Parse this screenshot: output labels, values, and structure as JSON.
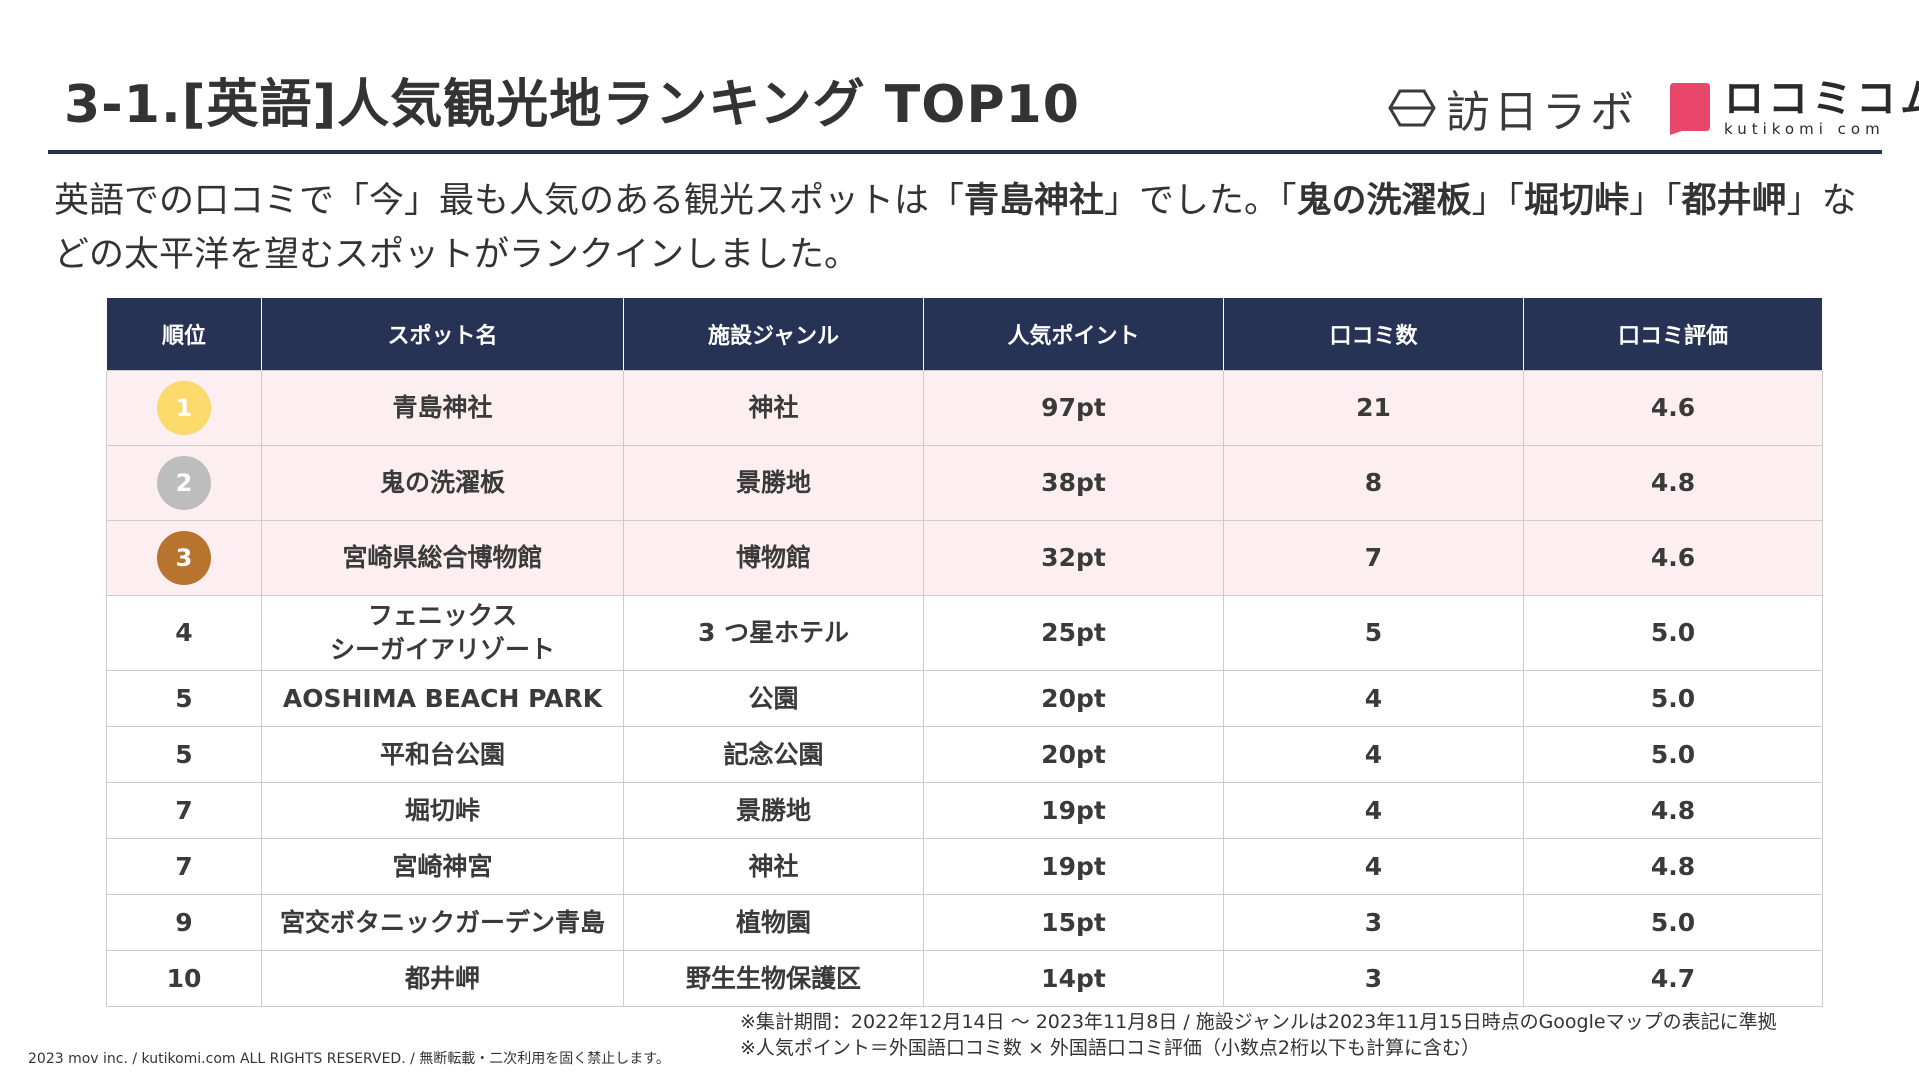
{
  "title": "3-1.[英語]人気観光地ランキング TOP10",
  "logos": {
    "houni_lab": "訪日ラボ",
    "kutikomi_main": "ロコミコム",
    "kutikomi_sub": "kutikomi com",
    "kutikomi_color": "#e8466b"
  },
  "lead": {
    "p1": "英語での口コミで「今」最も人気のある観光スポットは「",
    "b1": "青島神社",
    "p2": "」でした。「",
    "b2": "鬼の洗濯板",
    "p3": "」「",
    "b3": "堀切峠",
    "p4": "」「",
    "b4": "都井岬",
    "p5": "」などの太平洋を望むスポットがランクインしました。"
  },
  "table": {
    "headers": [
      "順位",
      "スポット名",
      "施設ジャンル",
      "人気ポイント",
      "口コミ数",
      "口コミ評価"
    ],
    "medal_colors": [
      "#fbd96a",
      "#bdbdbd",
      "#b8742f"
    ],
    "rows": [
      {
        "rank": "1",
        "name": "青島神社",
        "name2": "",
        "genre": "神社",
        "points": "97pt",
        "count": "21",
        "rating": "4.6"
      },
      {
        "rank": "2",
        "name": "鬼の洗濯板",
        "name2": "",
        "genre": "景勝地",
        "points": "38pt",
        "count": "8",
        "rating": "4.8"
      },
      {
        "rank": "3",
        "name": "宮崎県総合博物館",
        "name2": "",
        "genre": "博物館",
        "points": "32pt",
        "count": "7",
        "rating": "4.6"
      },
      {
        "rank": "4",
        "name": "フェニックス",
        "name2": "シーガイアリゾート",
        "genre": "3 つ星ホテル",
        "points": "25pt",
        "count": "5",
        "rating": "5.0"
      },
      {
        "rank": "5",
        "name": "AOSHIMA BEACH PARK",
        "name2": "",
        "genre": "公園",
        "points": "20pt",
        "count": "4",
        "rating": "5.0"
      },
      {
        "rank": "5",
        "name": "平和台公園",
        "name2": "",
        "genre": "記念公園",
        "points": "20pt",
        "count": "4",
        "rating": "5.0"
      },
      {
        "rank": "7",
        "name": "堀切峠",
        "name2": "",
        "genre": "景勝地",
        "points": "19pt",
        "count": "4",
        "rating": "4.8"
      },
      {
        "rank": "7",
        "name": "宮崎神宮",
        "name2": "",
        "genre": "神社",
        "points": "19pt",
        "count": "4",
        "rating": "4.8"
      },
      {
        "rank": "9",
        "name": "宮交ボタニックガーデン青島",
        "name2": "",
        "genre": "植物園",
        "points": "15pt",
        "count": "3",
        "rating": "5.0"
      },
      {
        "rank": "10",
        "name": "都井岬",
        "name2": "",
        "genre": "野生生物保護区",
        "points": "14pt",
        "count": "3",
        "rating": "4.7"
      }
    ]
  },
  "footnotes": [
    "※集計期間：2022年12月14日 〜 2023年11月8日 / 施設ジャンルは2023年11月15日時点のGoogleマップの表記に準拠",
    "※人気ポイント＝外国語口コミ数 × 外国語口コミ評価（小数点2桁以下も計算に含む）"
  ],
  "copyright": "2023 mov inc. / kutikomi.com ALL RIGHTS RESERVED. / 無断転載・二次利用を固く禁止します。"
}
